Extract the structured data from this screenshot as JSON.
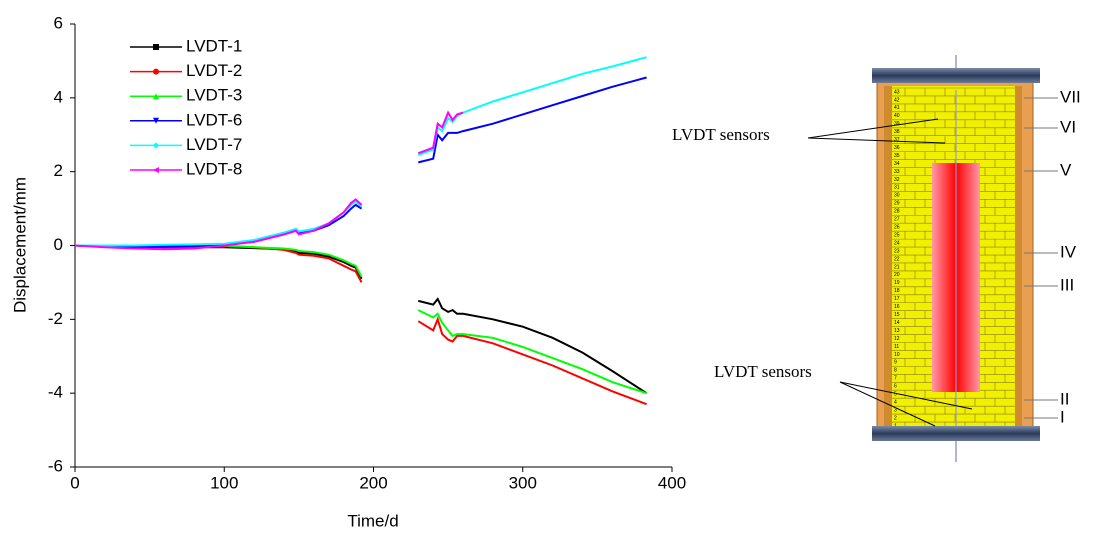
{
  "chart_data": {
    "type": "line",
    "xlabel": "Time/d",
    "ylabel": "Displacement/mm",
    "x": [
      0,
      20,
      40,
      60,
      80,
      100,
      120,
      140,
      148,
      150,
      160,
      170,
      180,
      185,
      188,
      192,
      210,
      230,
      240,
      243,
      246,
      250,
      253,
      256,
      260,
      280,
      300,
      320,
      340,
      360,
      383
    ],
    "series": [
      {
        "name": "LVDT-1",
        "color": "#000000",
        "marker": "square",
        "values": [
          0,
          -0.02,
          -0.03,
          -0.05,
          -0.05,
          -0.05,
          -0.07,
          -0.1,
          -0.15,
          -0.2,
          -0.22,
          -0.3,
          -0.45,
          -0.55,
          -0.6,
          -0.9,
          null,
          -1.5,
          -1.6,
          -1.45,
          -1.7,
          -1.8,
          -1.75,
          -1.85,
          -1.85,
          -2.0,
          -2.2,
          -2.5,
          -2.9,
          -3.4,
          -4.0
        ]
      },
      {
        "name": "LVDT-2",
        "color": "#ff0000",
        "marker": "circle",
        "values": [
          0,
          -0.02,
          -0.03,
          -0.05,
          -0.04,
          -0.02,
          -0.05,
          -0.12,
          -0.2,
          -0.25,
          -0.28,
          -0.35,
          -0.55,
          -0.65,
          -0.7,
          -1.0,
          null,
          -2.05,
          -2.3,
          -2.0,
          -2.4,
          -2.55,
          -2.6,
          -2.45,
          -2.45,
          -2.65,
          -2.95,
          -3.25,
          -3.6,
          -3.95,
          -4.3
        ]
      },
      {
        "name": "LVDT-3",
        "color": "#00ff00",
        "marker": "triangle",
        "values": [
          0,
          -0.02,
          -0.02,
          -0.01,
          0,
          0,
          -0.05,
          -0.08,
          -0.12,
          -0.15,
          -0.18,
          -0.25,
          -0.4,
          -0.5,
          -0.55,
          -0.85,
          null,
          -1.75,
          -1.95,
          -1.85,
          -2.1,
          -2.3,
          -2.45,
          -2.4,
          -2.4,
          -2.5,
          -2.75,
          -3.05,
          -3.35,
          -3.7,
          -4.0
        ]
      },
      {
        "name": "LVDT-6",
        "color": "#0000ff",
        "marker": "down-triangle",
        "values": [
          0,
          -0.02,
          -0.03,
          -0.03,
          -0.01,
          0.02,
          0.1,
          0.3,
          0.4,
          0.35,
          0.4,
          0.55,
          0.8,
          1.0,
          1.1,
          1.0,
          null,
          2.25,
          2.35,
          3.0,
          2.85,
          3.05,
          3.05,
          3.05,
          3.1,
          3.3,
          3.55,
          3.8,
          4.05,
          4.3,
          4.55
        ]
      },
      {
        "name": "LVDT-7",
        "color": "#00ffff",
        "marker": "diamond",
        "values": [
          0,
          0,
          0,
          0.02,
          0.03,
          0.05,
          0.15,
          0.35,
          0.45,
          0.38,
          0.45,
          0.6,
          0.9,
          1.1,
          1.2,
          1.05,
          null,
          2.45,
          2.6,
          3.2,
          3.1,
          3.45,
          3.35,
          3.5,
          3.6,
          3.9,
          4.15,
          4.4,
          4.65,
          4.85,
          5.1
        ]
      },
      {
        "name": "LVDT-8",
        "color": "#ff00ff",
        "marker": "left-triangle",
        "values": [
          0,
          -0.05,
          -0.08,
          -0.1,
          -0.08,
          0,
          0.1,
          0.3,
          0.4,
          0.3,
          0.4,
          0.6,
          0.9,
          1.15,
          1.25,
          1.1,
          null,
          2.5,
          2.65,
          3.3,
          3.2,
          3.6,
          3.4,
          3.55,
          3.6,
          null,
          null,
          null,
          null,
          null,
          null
        ]
      }
    ],
    "xlim": [
      0,
      400
    ],
    "xticks": [
      0,
      100,
      200,
      300,
      400
    ],
    "ylim": [
      -6,
      6
    ],
    "yticks": [
      -6,
      -4,
      -2,
      0,
      2,
      4,
      6
    ],
    "legend": "upper left",
    "grid": false
  },
  "diagram": {
    "sensor_labels": [
      "LVDT sensors",
      "LVDT sensors"
    ],
    "sections": [
      "VII",
      "VI",
      "V",
      "IV",
      "III",
      "II",
      "I"
    ],
    "layer_numbers": [
      1,
      2,
      3,
      4,
      5,
      6,
      7,
      8,
      9,
      10,
      11,
      12,
      13,
      14,
      15,
      16,
      17,
      18,
      19,
      20,
      21,
      22,
      23,
      24,
      25,
      26,
      27,
      28,
      29,
      30,
      31,
      32,
      33,
      34,
      35,
      36,
      37,
      38,
      39,
      40,
      41,
      42,
      43
    ]
  }
}
